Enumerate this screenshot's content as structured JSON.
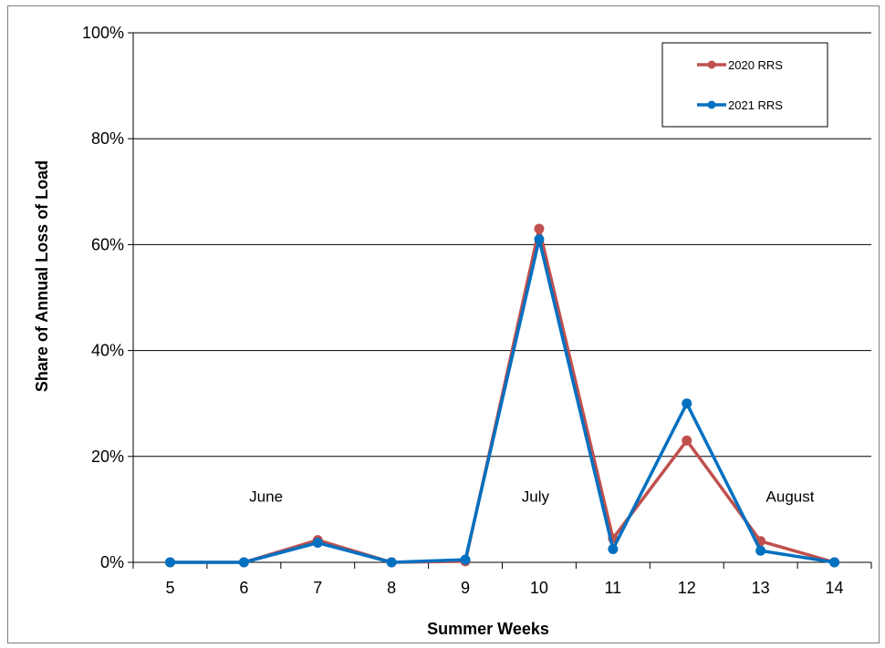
{
  "chart_data": {
    "type": "line",
    "title": "",
    "xlabel": "Summer Weeks",
    "ylabel": "Share of Annual Loss of Load",
    "x": [
      5,
      6,
      7,
      8,
      9,
      10,
      11,
      12,
      13,
      14
    ],
    "x_tick_labels": [
      "5",
      "6",
      "7",
      "8",
      "9",
      "10",
      "11",
      "12",
      "13",
      "14"
    ],
    "y_tick_labels": [
      "0%",
      "20%",
      "40%",
      "60%",
      "80%",
      "100%"
    ],
    "ylim": [
      0,
      100
    ],
    "y_unit": "%",
    "grid": "horizontal",
    "legend_position": "top-right",
    "series": [
      {
        "name": "2020 RRS",
        "color": "#c0504d",
        "values": [
          0,
          0,
          4.2,
          0,
          0.2,
          63,
          4.5,
          23,
          4,
          0
        ]
      },
      {
        "name": "2021 RRS",
        "color": "#0070c0",
        "values": [
          0,
          0,
          3.7,
          0,
          0.5,
          61,
          2.5,
          30,
          2.2,
          0
        ]
      }
    ],
    "annotations": [
      {
        "text": "June",
        "x": 6.3,
        "y": 12.5
      },
      {
        "text": "July",
        "x": 9.95,
        "y": 12.5
      },
      {
        "text": "August",
        "x": 13.4,
        "y": 12.5
      }
    ]
  }
}
